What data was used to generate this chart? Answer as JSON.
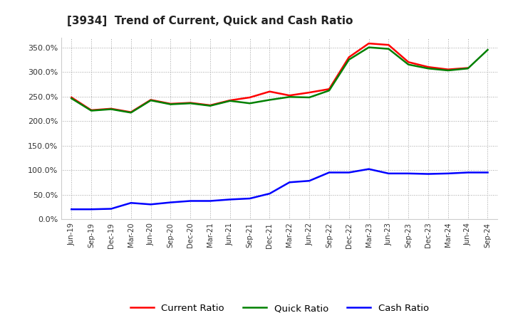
{
  "title": "[3934]  Trend of Current, Quick and Cash Ratio",
  "labels": [
    "Jun-19",
    "Sep-19",
    "Dec-19",
    "Mar-20",
    "Jun-20",
    "Sep-20",
    "Dec-20",
    "Mar-21",
    "Jun-21",
    "Sep-21",
    "Dec-21",
    "Mar-22",
    "Jun-22",
    "Sep-22",
    "Dec-22",
    "Mar-23",
    "Jun-23",
    "Sep-23",
    "Dec-23",
    "Mar-24",
    "Jun-24",
    "Sep-24"
  ],
  "current_ratio": [
    248,
    222,
    225,
    218,
    243,
    235,
    237,
    232,
    242,
    248,
    260,
    252,
    258,
    265,
    330,
    358,
    355,
    320,
    310,
    305,
    308,
    null
  ],
  "quick_ratio": [
    246,
    221,
    224,
    217,
    242,
    234,
    236,
    231,
    241,
    236,
    243,
    249,
    248,
    262,
    325,
    350,
    347,
    315,
    307,
    303,
    307,
    345
  ],
  "cash_ratio": [
    20,
    20,
    21,
    33,
    30,
    34,
    37,
    37,
    40,
    42,
    52,
    75,
    78,
    95,
    95,
    102,
    93,
    93,
    92,
    93,
    95,
    95
  ],
  "current_color": "#ff0000",
  "quick_color": "#008000",
  "cash_color": "#0000ff",
  "bg_color": "#ffffff",
  "grid_color": "#999999",
  "ylim": [
    0,
    370
  ],
  "yticks": [
    0,
    50,
    100,
    150,
    200,
    250,
    300,
    350
  ],
  "legend_labels": [
    "Current Ratio",
    "Quick Ratio",
    "Cash Ratio"
  ],
  "line_width": 1.8,
  "title_fontsize": 11
}
